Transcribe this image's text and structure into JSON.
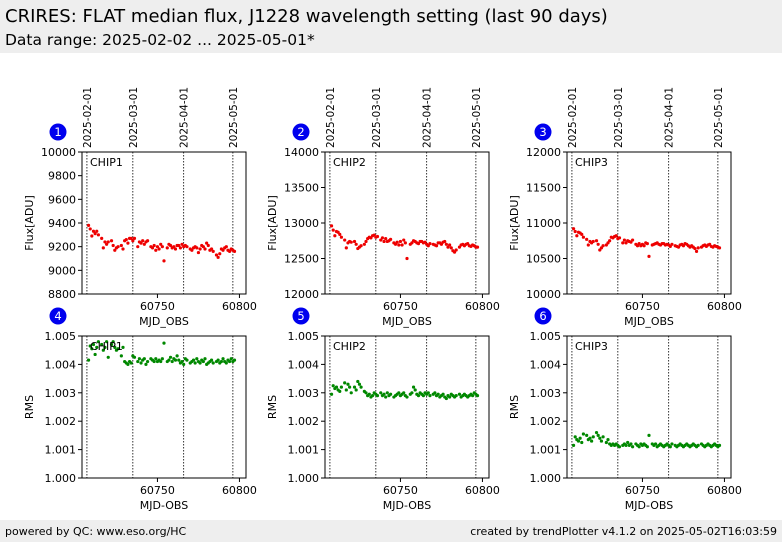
{
  "header": {
    "title": "CRIRES: FLAT median flux, J1228 wavelength setting (last 90 days)",
    "subtitle": "Data range: 2025-02-02 ... 2025-05-01*"
  },
  "footer": {
    "left": "powered by QC: www.eso.org/HC",
    "right": "created by trendPlotter v4.1.2 on 2025-05-02T16:03:59"
  },
  "colors": {
    "flux": "#ee0000",
    "rms": "#008800",
    "badge": "#0000ee",
    "header_bg": "#eeeeee"
  },
  "date_markers": {
    "labels": [
      "2025-02-01",
      "2025-03-01",
      "2025-04-01",
      "2025-05-01"
    ],
    "mjd": [
      60707,
      60735,
      60766,
      60796
    ]
  },
  "chart_data": [
    {
      "id": "1",
      "type": "scatter",
      "chip": "CHIP1",
      "series_color": "flux",
      "xlabel": "MJD_OBS",
      "ylabel": "Flux[ADU]",
      "xlim": [
        60704,
        60804
      ],
      "xticks": [
        60750,
        60800
      ],
      "ylim": [
        8800,
        10000
      ],
      "yticks": [
        8800,
        9000,
        9200,
        9400,
        9600,
        9800,
        10000
      ],
      "x": [
        60708,
        60709,
        60710,
        60711,
        60712,
        60713,
        60714,
        60716,
        60717,
        60718,
        60719,
        60720,
        60722,
        60723,
        60724,
        60725,
        60726,
        60728,
        60729,
        60730,
        60731,
        60732,
        60733,
        60734,
        60735,
        60736,
        60738,
        60739,
        60740,
        60741,
        60742,
        60743,
        60744,
        60746,
        60747,
        60748,
        60749,
        60750,
        60751,
        60752,
        60753,
        60754,
        60756,
        60757,
        60758,
        60759,
        60760,
        60761,
        60762,
        60763,
        60764,
        60765,
        60766,
        60767,
        60768,
        60770,
        60771,
        60772,
        60773,
        60774,
        60775,
        60776,
        60777,
        60778,
        60779,
        60780,
        60781,
        60782,
        60783,
        60784,
        60786,
        60787,
        60788,
        60789,
        60790,
        60791,
        60792,
        60793,
        60794,
        60795,
        60796,
        60797
      ],
      "y": [
        9380,
        9350,
        9290,
        9330,
        9310,
        9330,
        9300,
        9270,
        9190,
        9240,
        9220,
        9240,
        9250,
        9210,
        9170,
        9190,
        9200,
        9210,
        9180,
        9250,
        9260,
        9230,
        9270,
        9270,
        9250,
        9270,
        9200,
        9240,
        9230,
        9250,
        9220,
        9240,
        9250,
        9200,
        9190,
        9210,
        9170,
        9200,
        9180,
        9220,
        9200,
        9080,
        9190,
        9220,
        9210,
        9190,
        9200,
        9180,
        9210,
        9210,
        9190,
        9220,
        9200,
        9210,
        9200,
        9180,
        9170,
        9190,
        9200,
        9190,
        9150,
        9180,
        9210,
        9200,
        9180,
        9230,
        9210,
        9170,
        9180,
        9160,
        9130,
        9110,
        9140,
        9180,
        9170,
        9190,
        9200,
        9170,
        9160,
        9180,
        9170,
        9160
      ]
    },
    {
      "id": "2",
      "type": "scatter",
      "chip": "CHIP2",
      "series_color": "flux",
      "xlabel": "MJD_OBS",
      "ylabel": "Flux[ADU]",
      "xlim": [
        60704,
        60804
      ],
      "xticks": [
        60750,
        60800
      ],
      "ylim": [
        12000,
        14000
      ],
      "yticks": [
        12000,
        12500,
        13000,
        13500,
        14000
      ],
      "x": [
        60708,
        60709,
        60710,
        60711,
        60712,
        60713,
        60714,
        60716,
        60717,
        60718,
        60719,
        60720,
        60722,
        60723,
        60724,
        60725,
        60726,
        60728,
        60729,
        60730,
        60731,
        60732,
        60733,
        60734,
        60735,
        60736,
        60738,
        60739,
        60740,
        60741,
        60742,
        60743,
        60744,
        60746,
        60747,
        60748,
        60749,
        60750,
        60751,
        60752,
        60753,
        60754,
        60756,
        60757,
        60758,
        60759,
        60760,
        60761,
        60762,
        60763,
        60764,
        60765,
        60766,
        60767,
        60768,
        60770,
        60771,
        60772,
        60773,
        60774,
        60775,
        60776,
        60777,
        60778,
        60779,
        60780,
        60781,
        60782,
        60783,
        60784,
        60786,
        60787,
        60788,
        60789,
        60790,
        60791,
        60792,
        60793,
        60794,
        60795,
        60796,
        60797
      ],
      "y": [
        12960,
        12900,
        12820,
        12880,
        12870,
        12840,
        12800,
        12760,
        12650,
        12720,
        12740,
        12730,
        12740,
        12700,
        12640,
        12660,
        12680,
        12700,
        12740,
        12780,
        12800,
        12790,
        12820,
        12830,
        12800,
        12810,
        12760,
        12790,
        12740,
        12780,
        12740,
        12750,
        12770,
        12720,
        12700,
        12730,
        12690,
        12740,
        12690,
        12760,
        12720,
        12500,
        12700,
        12720,
        12750,
        12740,
        12720,
        12710,
        12740,
        12740,
        12720,
        12730,
        12700,
        12680,
        12710,
        12700,
        12690,
        12680,
        12720,
        12720,
        12700,
        12730,
        12740,
        12700,
        12660,
        12690,
        12650,
        12610,
        12590,
        12620,
        12660,
        12690,
        12700,
        12680,
        12700,
        12710,
        12680,
        12670,
        12690,
        12680,
        12660,
        12660
      ]
    },
    {
      "id": "3",
      "type": "scatter",
      "chip": "CHIP3",
      "series_color": "flux",
      "xlabel": "MJD_OBS",
      "ylabel": "Flux[ADU]",
      "xlim": [
        60704,
        60804
      ],
      "xticks": [
        60750,
        60800
      ],
      "ylim": [
        10000,
        12000
      ],
      "yticks": [
        10000,
        10500,
        11000,
        11500,
        12000
      ],
      "x": [
        60708,
        60709,
        60710,
        60711,
        60712,
        60713,
        60714,
        60716,
        60717,
        60718,
        60719,
        60720,
        60722,
        60723,
        60724,
        60725,
        60726,
        60728,
        60729,
        60730,
        60731,
        60732,
        60733,
        60734,
        60735,
        60736,
        60738,
        60739,
        60740,
        60741,
        60742,
        60743,
        60744,
        60746,
        60747,
        60748,
        60749,
        60750,
        60751,
        60752,
        60753,
        60754,
        60756,
        60757,
        60758,
        60759,
        60760,
        60761,
        60762,
        60763,
        60764,
        60765,
        60766,
        60767,
        60768,
        60770,
        60771,
        60772,
        60773,
        60774,
        60775,
        60776,
        60777,
        60778,
        60779,
        60780,
        60781,
        60782,
        60783,
        60784,
        60786,
        60787,
        60788,
        60789,
        60790,
        60791,
        60792,
        60793,
        60794,
        60795,
        60796,
        60797
      ],
      "y": [
        10920,
        10880,
        10820,
        10870,
        10860,
        10840,
        10800,
        10770,
        10690,
        10740,
        10720,
        10740,
        10750,
        10700,
        10620,
        10650,
        10680,
        10690,
        10720,
        10750,
        10800,
        10790,
        10810,
        10820,
        10780,
        10790,
        10720,
        10760,
        10720,
        10750,
        10740,
        10730,
        10760,
        10700,
        10680,
        10710,
        10680,
        10700,
        10680,
        10720,
        10710,
        10530,
        10690,
        10700,
        10710,
        10720,
        10700,
        10690,
        10710,
        10710,
        10690,
        10700,
        10690,
        10670,
        10700,
        10680,
        10670,
        10660,
        10690,
        10700,
        10680,
        10710,
        10700,
        10680,
        10660,
        10680,
        10660,
        10640,
        10600,
        10650,
        10660,
        10680,
        10690,
        10670,
        10690,
        10700,
        10670,
        10660,
        10680,
        10670,
        10660,
        10650
      ]
    },
    {
      "id": "4",
      "type": "scatter",
      "chip": "CHIP1",
      "series_color": "rms",
      "xlabel": "MJD-OBS",
      "ylabel": "RMS",
      "xlim": [
        60704,
        60804
      ],
      "xticks": [
        60750,
        60800
      ],
      "ylim": [
        1.0,
        1.005
      ],
      "yticks": [
        1.0,
        1.001,
        1.002,
        1.003,
        1.004,
        1.005
      ],
      "x": [
        60708,
        60709,
        60710,
        60711,
        60712,
        60713,
        60714,
        60716,
        60717,
        60718,
        60719,
        60720,
        60722,
        60723,
        60724,
        60725,
        60726,
        60728,
        60729,
        60730,
        60731,
        60732,
        60733,
        60734,
        60735,
        60736,
        60738,
        60739,
        60740,
        60741,
        60742,
        60743,
        60744,
        60746,
        60747,
        60748,
        60749,
        60750,
        60751,
        60752,
        60753,
        60754,
        60756,
        60757,
        60758,
        60759,
        60760,
        60761,
        60762,
        60763,
        60764,
        60765,
        60766,
        60767,
        60768,
        60770,
        60771,
        60772,
        60773,
        60774,
        60775,
        60776,
        60777,
        60778,
        60779,
        60780,
        60781,
        60782,
        60783,
        60784,
        60786,
        60787,
        60788,
        60789,
        60790,
        60791,
        60792,
        60793,
        60794,
        60795,
        60796,
        60797
      ],
      "y": [
        1.00415,
        1.00465,
        1.00455,
        1.0047,
        1.00435,
        1.0046,
        1.0048,
        1.0047,
        1.0045,
        1.0046,
        1.0048,
        1.00425,
        1.0047,
        1.0048,
        1.0046,
        1.0045,
        1.00455,
        1.0043,
        1.0046,
        1.0041,
        1.00405,
        1.004,
        1.0041,
        1.00405,
        1.0043,
        1.00425,
        1.0041,
        1.0042,
        1.00405,
        1.00415,
        1.0042,
        1.004,
        1.0041,
        1.0042,
        1.00415,
        1.0041,
        1.0042,
        1.0041,
        1.00415,
        1.0041,
        1.0042,
        1.00475,
        1.0041,
        1.00415,
        1.00425,
        1.0041,
        1.0042,
        1.00415,
        1.0043,
        1.00415,
        1.00405,
        1.0041,
        1.004,
        1.0042,
        1.00415,
        1.00405,
        1.0041,
        1.00415,
        1.00405,
        1.0042,
        1.0041,
        1.00405,
        1.00415,
        1.0041,
        1.0042,
        1.004,
        1.00405,
        1.0041,
        1.00415,
        1.00405,
        1.0041,
        1.00415,
        1.00405,
        1.0041,
        1.0042,
        1.0041,
        1.00405,
        1.00415,
        1.0041,
        1.0042,
        1.0041,
        1.00415
      ]
    },
    {
      "id": "5",
      "type": "scatter",
      "chip": "CHIP2",
      "series_color": "rms",
      "xlabel": "MJD-OBS",
      "ylabel": "RMS",
      "xlim": [
        60704,
        60804
      ],
      "xticks": [
        60750,
        60800
      ],
      "ylim": [
        1.0,
        1.005
      ],
      "yticks": [
        1.0,
        1.001,
        1.002,
        1.003,
        1.004,
        1.005
      ],
      "x": [
        60708,
        60709,
        60710,
        60711,
        60712,
        60713,
        60714,
        60716,
        60717,
        60718,
        60719,
        60720,
        60722,
        60723,
        60724,
        60725,
        60726,
        60728,
        60729,
        60730,
        60731,
        60732,
        60733,
        60734,
        60735,
        60736,
        60738,
        60739,
        60740,
        60741,
        60742,
        60743,
        60744,
        60746,
        60747,
        60748,
        60749,
        60750,
        60751,
        60752,
        60753,
        60754,
        60756,
        60757,
        60758,
        60759,
        60760,
        60761,
        60762,
        60763,
        60764,
        60765,
        60766,
        60767,
        60768,
        60770,
        60771,
        60772,
        60773,
        60774,
        60775,
        60776,
        60777,
        60778,
        60779,
        60780,
        60781,
        60782,
        60783,
        60784,
        60786,
        60787,
        60788,
        60789,
        60790,
        60791,
        60792,
        60793,
        60794,
        60795,
        60796,
        60797
      ],
      "y": [
        1.00295,
        1.00325,
        1.00315,
        1.0032,
        1.0031,
        1.00305,
        1.0032,
        1.00335,
        1.0031,
        1.0033,
        1.0032,
        1.003,
        1.0032,
        1.0031,
        1.0034,
        1.0033,
        1.0032,
        1.00305,
        1.003,
        1.0029,
        1.00295,
        1.00285,
        1.0029,
        1.003,
        1.00295,
        1.0029,
        1.003,
        1.0029,
        1.00295,
        1.00285,
        1.003,
        1.0029,
        1.00295,
        1.00285,
        1.0029,
        1.00295,
        1.003,
        1.0029,
        1.00295,
        1.003,
        1.0029,
        1.00285,
        1.00295,
        1.003,
        1.0032,
        1.0031,
        1.00295,
        1.0029,
        1.003,
        1.00295,
        1.0029,
        1.003,
        1.00295,
        1.003,
        1.0029,
        1.00295,
        1.003,
        1.0029,
        1.00295,
        1.00285,
        1.0029,
        1.00295,
        1.00285,
        1.0028,
        1.0029,
        1.00285,
        1.00295,
        1.0029,
        1.00285,
        1.0029,
        1.00295,
        1.00285,
        1.0029,
        1.00295,
        1.0029,
        1.00285,
        1.0029,
        1.00295,
        1.0029,
        1.003,
        1.00295,
        1.0029
      ]
    },
    {
      "id": "6",
      "type": "scatter",
      "chip": "CHIP3",
      "series_color": "rms",
      "xlabel": "MJD-OBS",
      "ylabel": "RMS",
      "xlim": [
        60704,
        60804
      ],
      "xticks": [
        60750,
        60800
      ],
      "ylim": [
        1.0,
        1.005
      ],
      "yticks": [
        1.0,
        1.001,
        1.002,
        1.003,
        1.004,
        1.005
      ],
      "x": [
        60708,
        60709,
        60710,
        60711,
        60712,
        60713,
        60714,
        60716,
        60717,
        60718,
        60719,
        60720,
        60722,
        60723,
        60724,
        60725,
        60726,
        60728,
        60729,
        60730,
        60731,
        60732,
        60733,
        60734,
        60735,
        60736,
        60738,
        60739,
        60740,
        60741,
        60742,
        60743,
        60744,
        60746,
        60747,
        60748,
        60749,
        60750,
        60751,
        60752,
        60753,
        60754,
        60756,
        60757,
        60758,
        60759,
        60760,
        60761,
        60762,
        60763,
        60764,
        60765,
        60766,
        60767,
        60768,
        60770,
        60771,
        60772,
        60773,
        60774,
        60775,
        60776,
        60777,
        60778,
        60779,
        60780,
        60781,
        60782,
        60783,
        60784,
        60786,
        60787,
        60788,
        60789,
        60790,
        60791,
        60792,
        60793,
        60794,
        60795,
        60796,
        60797
      ],
      "y": [
        1.00115,
        1.00145,
        1.00135,
        1.0013,
        1.0014,
        1.00125,
        1.00155,
        1.0015,
        1.00135,
        1.0014,
        1.0013,
        1.00145,
        1.0016,
        1.0015,
        1.0014,
        1.0013,
        1.00145,
        1.00125,
        1.00135,
        1.0012,
        1.00115,
        1.0012,
        1.00115,
        1.0012,
        1.00115,
        1.0011,
        1.00115,
        1.0012,
        1.00115,
        1.00125,
        1.00115,
        1.0012,
        1.0011,
        1.0012,
        1.00115,
        1.0011,
        1.0012,
        1.00115,
        1.0012,
        1.00115,
        1.0011,
        1.0015,
        1.0012,
        1.00115,
        1.0012,
        1.0011,
        1.00115,
        1.0012,
        1.00115,
        1.0011,
        1.00115,
        1.0012,
        1.00115,
        1.0011,
        1.0012,
        1.00115,
        1.0011,
        1.00115,
        1.0012,
        1.00115,
        1.0011,
        1.00115,
        1.0012,
        1.00115,
        1.0011,
        1.00115,
        1.0012,
        1.00115,
        1.0011,
        1.00115,
        1.0012,
        1.00115,
        1.0011,
        1.00115,
        1.0012,
        1.00115,
        1.0011,
        1.00115,
        1.0012,
        1.00115,
        1.0011,
        1.00115
      ]
    }
  ]
}
